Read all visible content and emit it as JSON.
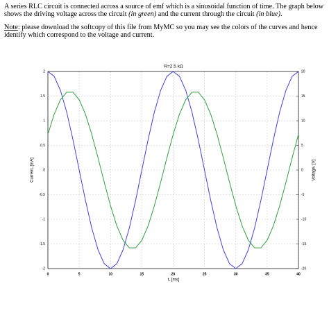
{
  "document": {
    "paragraphs": [
      {
        "runs": [
          {
            "text": "A series RLC circuit is connected across a source of emf which is a sinusoidal function of time. The graph below shows the driving voltage across the circuit ",
            "style": "normal"
          },
          {
            "text": "(in green)",
            "style": "italic"
          },
          {
            "text": " and the current through the circuit ",
            "style": "normal"
          },
          {
            "text": "(in blue)",
            "style": "italic"
          },
          {
            "text": ".",
            "style": "normal"
          }
        ]
      },
      {
        "runs": [
          {
            "text": "Note",
            "style": "underline"
          },
          {
            "text": ": please download the softcopy of this file from MyMC so you may see the colors of the curves and hence identify which correspond to the voltage and current.",
            "style": "normal"
          }
        ]
      }
    ]
  },
  "chart_data": {
    "type": "line",
    "title": "R=2.5 kΩ",
    "x_label": "t, [ms]",
    "y_label": "Current, [mA]",
    "y2_label": "Voltage, [V]",
    "grid": true,
    "x": [
      0,
      1,
      2,
      3,
      4,
      5,
      6,
      7,
      8,
      9,
      10,
      11,
      12,
      13,
      14,
      15,
      16,
      17,
      18,
      19,
      20,
      21,
      22,
      23,
      24,
      25,
      26,
      27,
      28,
      29,
      30,
      31,
      32,
      33,
      34,
      35,
      36,
      37,
      38,
      39,
      40
    ],
    "xlim": [
      0,
      40
    ],
    "xticks": [
      0,
      5,
      10,
      15,
      20,
      25,
      30,
      35,
      40
    ],
    "ylim": [
      -2,
      2
    ],
    "yticks": [
      -2,
      -1.5,
      -1,
      -0.5,
      0,
      0.5,
      1,
      1.5,
      2
    ],
    "y2lim": [
      -20,
      20
    ],
    "y2ticks": [
      -20,
      -15,
      -10,
      -5,
      0,
      5,
      10,
      15,
      20
    ],
    "series": [
      {
        "name": "Current",
        "color": "#4040e0",
        "values": [
          2,
          1.902,
          1.618,
          1.176,
          0.618,
          0,
          -0.618,
          -1.176,
          -1.618,
          -1.902,
          -2,
          -1.902,
          -1.618,
          -1.176,
          -0.618,
          0,
          0.618,
          1.176,
          1.618,
          1.902,
          2,
          1.902,
          1.618,
          1.176,
          0.618,
          0,
          -0.618,
          -1.176,
          -1.618,
          -1.902,
          -2,
          -1.902,
          -1.618,
          -1.176,
          -0.618,
          0,
          0.618,
          1.176,
          1.618,
          1.902,
          2
        ]
      },
      {
        "name": "Voltage",
        "color": "#30a040",
        "axis": "y2",
        "values": [
          7.26,
          11.31,
          14.26,
          15.8,
          15.8,
          14.26,
          11.31,
          7.26,
          2.5,
          -2.5,
          -7.26,
          -11.31,
          -14.26,
          -15.8,
          -15.8,
          -14.26,
          -11.31,
          -7.26,
          -2.5,
          2.5,
          7.26,
          11.31,
          14.26,
          15.8,
          15.8,
          14.26,
          11.31,
          7.26,
          2.5,
          -2.5,
          -7.26,
          -11.31,
          -14.26,
          -15.8,
          -15.8,
          -14.26,
          -11.31,
          -7.26,
          -2.5,
          2.5,
          7.26
        ]
      }
    ]
  }
}
